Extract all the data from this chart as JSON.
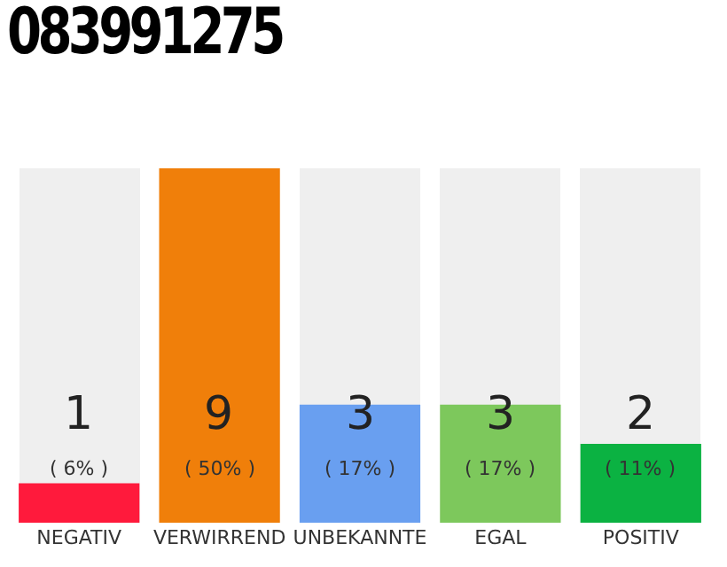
{
  "chart_data": {
    "type": "bar",
    "title": "083991275",
    "categories": [
      "NEGATIV",
      "VERWIRREND",
      "UNBEKANNTE",
      "EGAL",
      "POSITIV"
    ],
    "values": [
      1,
      9,
      3,
      3,
      2
    ],
    "colors": [
      "#ff1a3c",
      "#f07f0a",
      "#699ff0",
      "#7dc85c",
      "#0bb242"
    ],
    "data_labels": true,
    "annotations": [
      "( 6% )",
      "( 50% )",
      "( 17% )",
      "( 17% )",
      "( 11% )"
    ]
  }
}
